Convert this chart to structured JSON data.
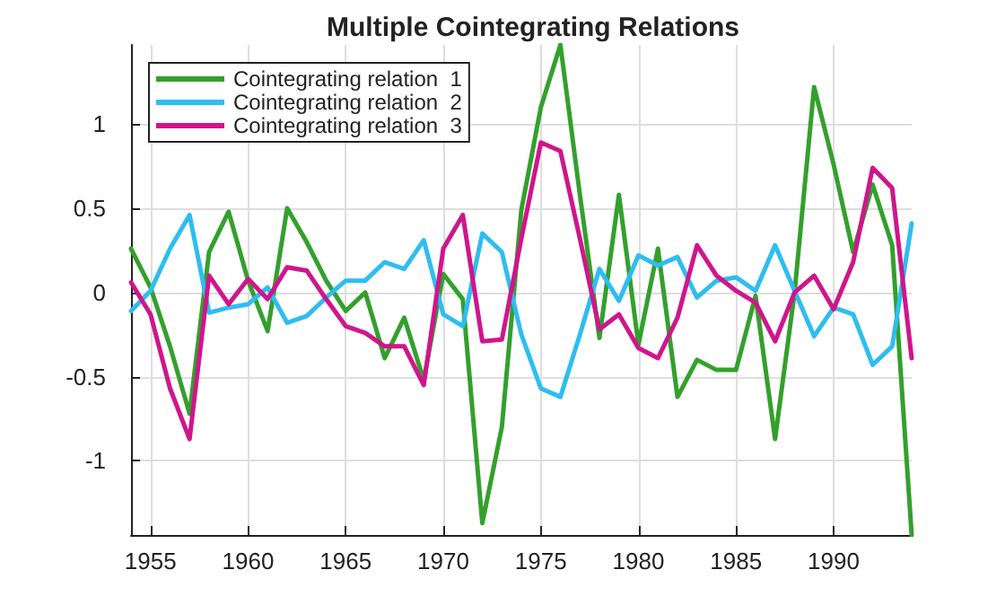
{
  "chart_data": {
    "type": "line",
    "title": "Multiple Cointegrating Relations",
    "x": [
      1954,
      1955,
      1956,
      1957,
      1958,
      1959,
      1960,
      1961,
      1962,
      1963,
      1964,
      1965,
      1966,
      1967,
      1968,
      1969,
      1970,
      1971,
      1972,
      1973,
      1974,
      1975,
      1976,
      1977,
      1978,
      1979,
      1980,
      1981,
      1982,
      1983,
      1984,
      1985,
      1986,
      1987,
      1988,
      1989,
      1990,
      1991,
      1992,
      1993,
      1994
    ],
    "series": [
      {
        "name": "Cointegrating relation  1",
        "color": "#33a02c",
        "values": [
          0.26,
          0.03,
          -0.32,
          -0.72,
          0.24,
          0.48,
          0.07,
          -0.23,
          0.5,
          0.3,
          0.07,
          -0.11,
          0.0,
          -0.39,
          -0.15,
          -0.52,
          0.11,
          -0.04,
          -1.37,
          -0.8,
          0.49,
          1.1,
          1.47,
          0.58,
          -0.27,
          0.58,
          -0.31,
          0.26,
          -0.62,
          -0.4,
          -0.46,
          -0.46,
          -0.02,
          -0.87,
          0.0,
          1.22,
          0.76,
          0.24,
          0.64,
          0.28,
          -1.44
        ]
      },
      {
        "name": "Cointegrating relation  2",
        "color": "#2ebdf0",
        "values": [
          -0.11,
          0.01,
          0.26,
          0.46,
          -0.12,
          -0.09,
          -0.07,
          0.03,
          -0.18,
          -0.14,
          -0.03,
          0.07,
          0.07,
          0.18,
          0.14,
          0.31,
          -0.13,
          -0.2,
          0.35,
          0.24,
          -0.25,
          -0.57,
          -0.62,
          -0.25,
          0.14,
          -0.05,
          0.22,
          0.16,
          0.21,
          -0.03,
          0.07,
          0.09,
          0.01,
          0.28,
          0.01,
          -0.26,
          -0.09,
          -0.13,
          -0.43,
          -0.32,
          0.41
        ]
      },
      {
        "name": "Cointegrating relation  3",
        "color": "#d0158c",
        "values": [
          0.06,
          -0.13,
          -0.57,
          -0.87,
          0.1,
          -0.07,
          0.08,
          -0.04,
          0.15,
          0.13,
          -0.04,
          -0.2,
          -0.24,
          -0.32,
          -0.32,
          -0.55,
          0.26,
          0.46,
          -0.29,
          -0.28,
          0.32,
          0.89,
          0.84,
          0.32,
          -0.22,
          -0.13,
          -0.33,
          -0.39,
          -0.15,
          0.28,
          0.1,
          0.01,
          -0.06,
          -0.29,
          0.0,
          0.1,
          -0.1,
          0.18,
          0.74,
          0.62,
          -0.39
        ]
      }
    ],
    "xlim": [
      1954,
      1994
    ],
    "xticks": [
      1955,
      1960,
      1965,
      1970,
      1975,
      1980,
      1985,
      1990
    ],
    "ylim": [
      -1.44,
      1.47
    ],
    "yticks": [
      -1,
      -0.5,
      0,
      0.5,
      1
    ],
    "grid": true,
    "legend": "top left"
  }
}
